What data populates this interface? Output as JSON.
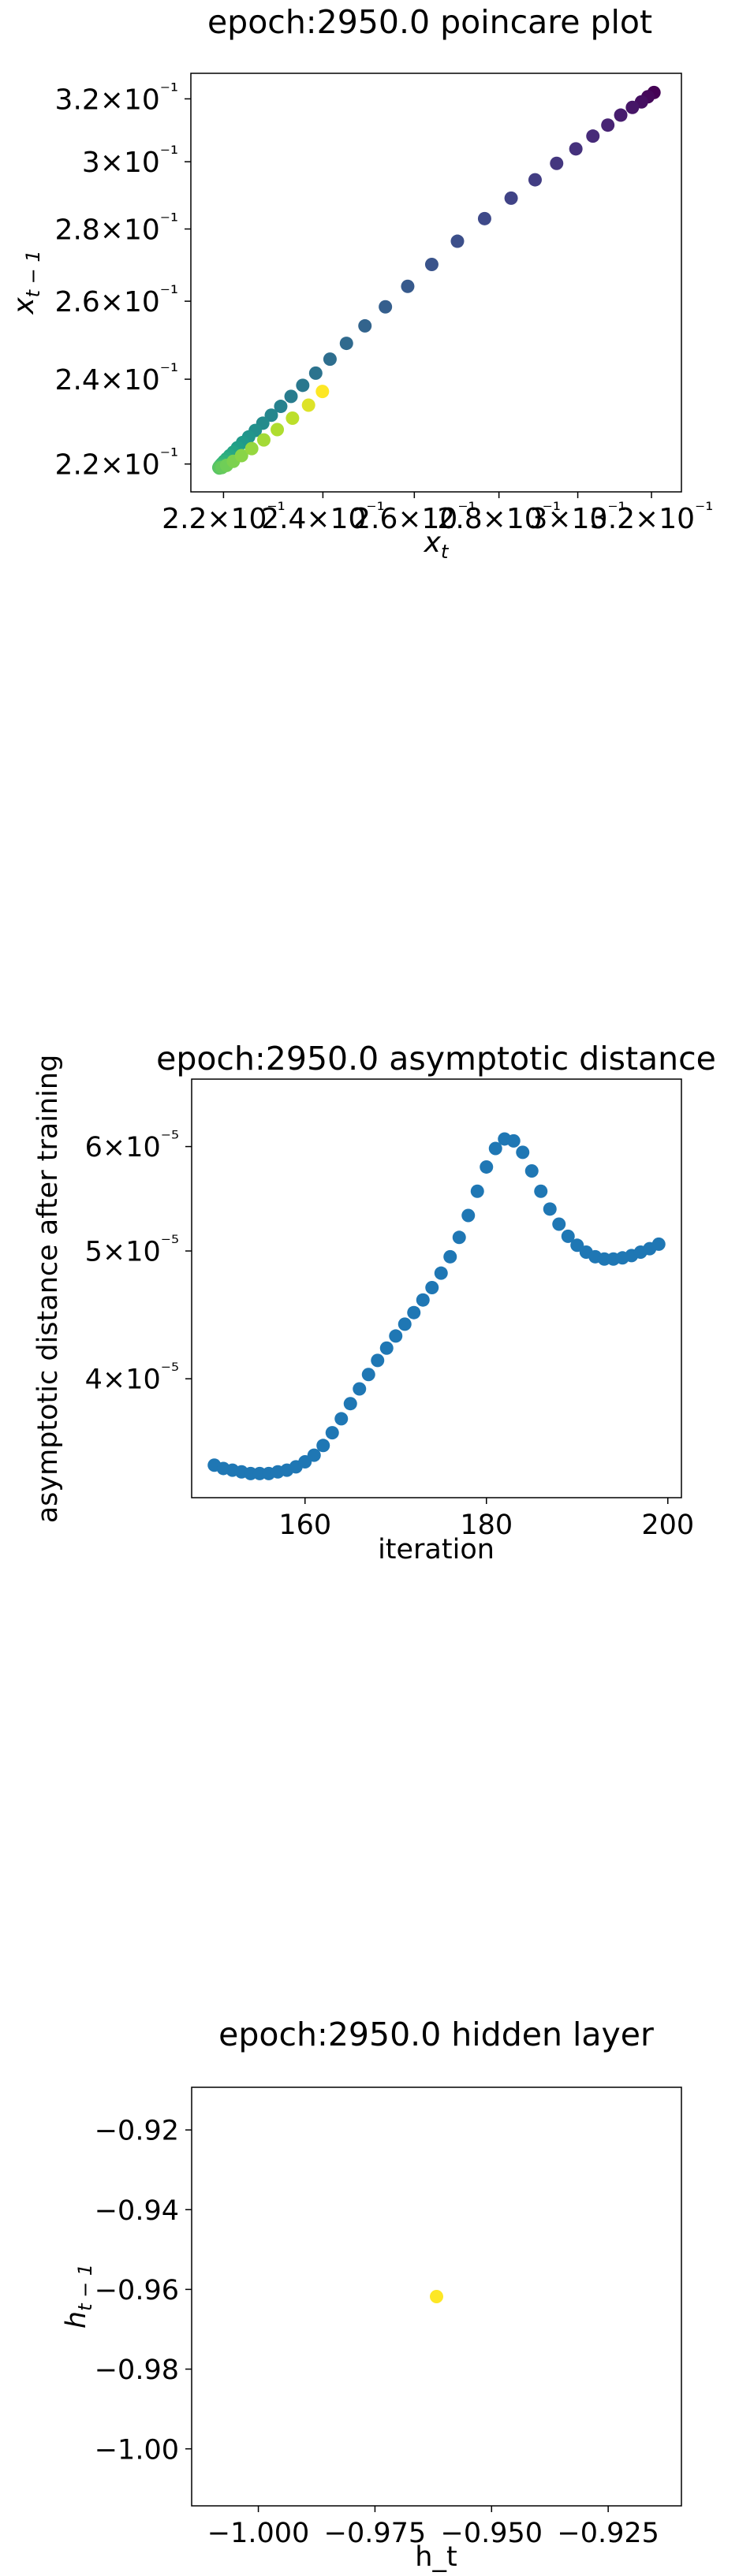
{
  "chart_data": [
    {
      "type": "scatter",
      "title": "epoch:2950.0 poincare plot",
      "xlabel": "x_t",
      "ylabel": "x_{t-1}",
      "xscale": "log",
      "yscale": "log",
      "colormap": "viridis",
      "xlim": [
        0.2138,
        0.3285
      ],
      "ylim": [
        0.2138,
        0.3285
      ],
      "xticks": [
        {
          "value": 0.22,
          "label": "2.2×10⁻¹"
        },
        {
          "value": 0.24,
          "label": "2.4×10⁻¹"
        },
        {
          "value": 0.26,
          "label": "2.6×10⁻¹"
        },
        {
          "value": 0.28,
          "label": "2.8×10⁻¹"
        },
        {
          "value": 0.3,
          "label": "3×10⁻¹"
        },
        {
          "value": 0.32,
          "label": "3.2×10⁻¹"
        }
      ],
      "yticks": [
        {
          "value": 0.22,
          "label": "2.2×10⁻¹"
        },
        {
          "value": 0.24,
          "label": "2.4×10⁻¹"
        },
        {
          "value": 0.26,
          "label": "2.6×10⁻¹"
        },
        {
          "value": 0.28,
          "label": "2.8×10⁻¹"
        },
        {
          "value": 0.3,
          "label": "3×10⁻¹"
        },
        {
          "value": 0.32,
          "label": "3.2×10⁻¹"
        }
      ],
      "points": [
        {
          "x": 0.3207,
          "y": 0.3221,
          "c": 0.0
        },
        {
          "x": 0.319,
          "y": 0.3207,
          "c": 0.02
        },
        {
          "x": 0.3172,
          "y": 0.319,
          "c": 0.04
        },
        {
          "x": 0.3147,
          "y": 0.3172,
          "c": 0.06
        },
        {
          "x": 0.3115,
          "y": 0.3147,
          "c": 0.08
        },
        {
          "x": 0.308,
          "y": 0.3115,
          "c": 0.1
        },
        {
          "x": 0.304,
          "y": 0.308,
          "c": 0.12
        },
        {
          "x": 0.2995,
          "y": 0.304,
          "c": 0.14
        },
        {
          "x": 0.2945,
          "y": 0.2995,
          "c": 0.16
        },
        {
          "x": 0.289,
          "y": 0.2945,
          "c": 0.18
        },
        {
          "x": 0.283,
          "y": 0.289,
          "c": 0.2
        },
        {
          "x": 0.2765,
          "y": 0.283,
          "c": 0.22
        },
        {
          "x": 0.27,
          "y": 0.2765,
          "c": 0.24
        },
        {
          "x": 0.264,
          "y": 0.27,
          "c": 0.26
        },
        {
          "x": 0.2585,
          "y": 0.264,
          "c": 0.28
        },
        {
          "x": 0.2535,
          "y": 0.2585,
          "c": 0.3
        },
        {
          "x": 0.249,
          "y": 0.2535,
          "c": 0.32
        },
        {
          "x": 0.245,
          "y": 0.249,
          "c": 0.34
        },
        {
          "x": 0.2415,
          "y": 0.245,
          "c": 0.36
        },
        {
          "x": 0.2385,
          "y": 0.2415,
          "c": 0.38
        },
        {
          "x": 0.2358,
          "y": 0.2385,
          "c": 0.4
        },
        {
          "x": 0.2334,
          "y": 0.2358,
          "c": 0.42
        },
        {
          "x": 0.2313,
          "y": 0.2334,
          "c": 0.44
        },
        {
          "x": 0.2294,
          "y": 0.2313,
          "c": 0.46
        },
        {
          "x": 0.2277,
          "y": 0.2294,
          "c": 0.48
        },
        {
          "x": 0.2262,
          "y": 0.2277,
          "c": 0.5
        },
        {
          "x": 0.2249,
          "y": 0.2262,
          "c": 0.52
        },
        {
          "x": 0.2237,
          "y": 0.2249,
          "c": 0.54
        },
        {
          "x": 0.2227,
          "y": 0.2237,
          "c": 0.56
        },
        {
          "x": 0.2219,
          "y": 0.2227,
          "c": 0.58
        },
        {
          "x": 0.2212,
          "y": 0.2219,
          "c": 0.6
        },
        {
          "x": 0.2206,
          "y": 0.2212,
          "c": 0.62
        },
        {
          "x": 0.2201,
          "y": 0.2206,
          "c": 0.64
        },
        {
          "x": 0.2197,
          "y": 0.2201,
          "c": 0.66
        },
        {
          "x": 0.2194,
          "y": 0.2197,
          "c": 0.68
        },
        {
          "x": 0.2192,
          "y": 0.2194,
          "c": 0.7
        },
        {
          "x": 0.2191,
          "y": 0.2192,
          "c": 0.72
        },
        {
          "x": 0.2192,
          "y": 0.2191,
          "c": 0.74
        },
        {
          "x": 0.2197,
          "y": 0.2192,
          "c": 0.76
        },
        {
          "x": 0.2206,
          "y": 0.2197,
          "c": 0.78
        },
        {
          "x": 0.2219,
          "y": 0.2206,
          "c": 0.8
        },
        {
          "x": 0.2235,
          "y": 0.2219,
          "c": 0.82
        },
        {
          "x": 0.2255,
          "y": 0.2235,
          "c": 0.84
        },
        {
          "x": 0.2279,
          "y": 0.2255,
          "c": 0.86
        },
        {
          "x": 0.2306,
          "y": 0.2279,
          "c": 0.88
        },
        {
          "x": 0.2337,
          "y": 0.2306,
          "c": 0.9
        },
        {
          "x": 0.237,
          "y": 0.2337,
          "c": 0.95
        },
        {
          "x": 0.2399,
          "y": 0.237,
          "c": 1.0
        }
      ]
    },
    {
      "type": "scatter",
      "title": "epoch:2950.0 asymptotic distance",
      "xlabel": "iteration",
      "ylabel": "asymptotic distance after training",
      "yscale": "log",
      "color": "#1f77b4",
      "xlim": [
        147.5,
        201.5
      ],
      "ylim": [
        3.25e-05,
        6.75e-05
      ],
      "xticks": [
        {
          "value": 160,
          "label": "160"
        },
        {
          "value": 180,
          "label": "180"
        },
        {
          "value": 200,
          "label": "200"
        }
      ],
      "yticks": [
        {
          "value": 4e-05,
          "label": "4×10⁻⁵"
        },
        {
          "value": 5e-05,
          "label": "5×10⁻⁵"
        },
        {
          "value": 6e-05,
          "label": "6×10⁻⁵"
        }
      ],
      "points": [
        {
          "x": 150,
          "y": 3.44e-05
        },
        {
          "x": 151,
          "y": 3.42e-05
        },
        {
          "x": 152,
          "y": 3.41e-05
        },
        {
          "x": 153,
          "y": 3.4e-05
        },
        {
          "x": 154,
          "y": 3.39e-05
        },
        {
          "x": 155,
          "y": 3.39e-05
        },
        {
          "x": 156,
          "y": 3.39e-05
        },
        {
          "x": 157,
          "y": 3.4e-05
        },
        {
          "x": 158,
          "y": 3.41e-05
        },
        {
          "x": 159,
          "y": 3.43e-05
        },
        {
          "x": 160,
          "y": 3.46e-05
        },
        {
          "x": 161,
          "y": 3.5e-05
        },
        {
          "x": 162,
          "y": 3.56e-05
        },
        {
          "x": 163,
          "y": 3.64e-05
        },
        {
          "x": 164,
          "y": 3.73e-05
        },
        {
          "x": 165,
          "y": 3.83e-05
        },
        {
          "x": 166,
          "y": 3.93e-05
        },
        {
          "x": 167,
          "y": 4.03e-05
        },
        {
          "x": 168,
          "y": 4.13e-05
        },
        {
          "x": 169,
          "y": 4.22e-05
        },
        {
          "x": 170,
          "y": 4.31e-05
        },
        {
          "x": 171,
          "y": 4.4e-05
        },
        {
          "x": 172,
          "y": 4.49e-05
        },
        {
          "x": 173,
          "y": 4.59e-05
        },
        {
          "x": 174,
          "y": 4.69e-05
        },
        {
          "x": 175,
          "y": 4.81e-05
        },
        {
          "x": 176,
          "y": 4.95e-05
        },
        {
          "x": 177,
          "y": 5.12e-05
        },
        {
          "x": 178,
          "y": 5.32e-05
        },
        {
          "x": 179,
          "y": 5.55e-05
        },
        {
          "x": 180,
          "y": 5.79e-05
        },
        {
          "x": 181,
          "y": 5.98e-05
        },
        {
          "x": 182,
          "y": 6.08e-05
        },
        {
          "x": 183,
          "y": 6.06e-05
        },
        {
          "x": 184,
          "y": 5.94e-05
        },
        {
          "x": 185,
          "y": 5.75e-05
        },
        {
          "x": 186,
          "y": 5.55e-05
        },
        {
          "x": 187,
          "y": 5.38e-05
        },
        {
          "x": 188,
          "y": 5.24e-05
        },
        {
          "x": 189,
          "y": 5.13e-05
        },
        {
          "x": 190,
          "y": 5.05e-05
        },
        {
          "x": 191,
          "y": 4.99e-05
        },
        {
          "x": 192,
          "y": 4.95e-05
        },
        {
          "x": 193,
          "y": 4.93e-05
        },
        {
          "x": 194,
          "y": 4.93e-05
        },
        {
          "x": 195,
          "y": 4.94e-05
        },
        {
          "x": 196,
          "y": 4.96e-05
        },
        {
          "x": 197,
          "y": 4.99e-05
        },
        {
          "x": 198,
          "y": 5.02e-05
        },
        {
          "x": 199,
          "y": 5.06e-05
        }
      ]
    },
    {
      "type": "scatter",
      "title": "epoch:2950.0 hidden layer",
      "xlabel": "h_t",
      "ylabel": "h_{t-1}",
      "color": "#fde725",
      "xlim": [
        -1.0143,
        -0.9093
      ],
      "ylim": [
        -1.0143,
        -0.9093
      ],
      "xticks": [
        {
          "value": -1.0,
          "label": "−1.000"
        },
        {
          "value": -0.975,
          "label": "−0.975"
        },
        {
          "value": -0.95,
          "label": "−0.950"
        },
        {
          "value": -0.925,
          "label": "−0.925"
        }
      ],
      "yticks": [
        {
          "value": -1.0,
          "label": "−1.00"
        },
        {
          "value": -0.98,
          "label": "−0.98"
        },
        {
          "value": -0.96,
          "label": "−0.96"
        },
        {
          "value": -0.94,
          "label": "−0.94"
        },
        {
          "value": -0.92,
          "label": "−0.92"
        }
      ],
      "points": [
        {
          "x": -0.9618,
          "y": -0.9618
        }
      ]
    }
  ]
}
